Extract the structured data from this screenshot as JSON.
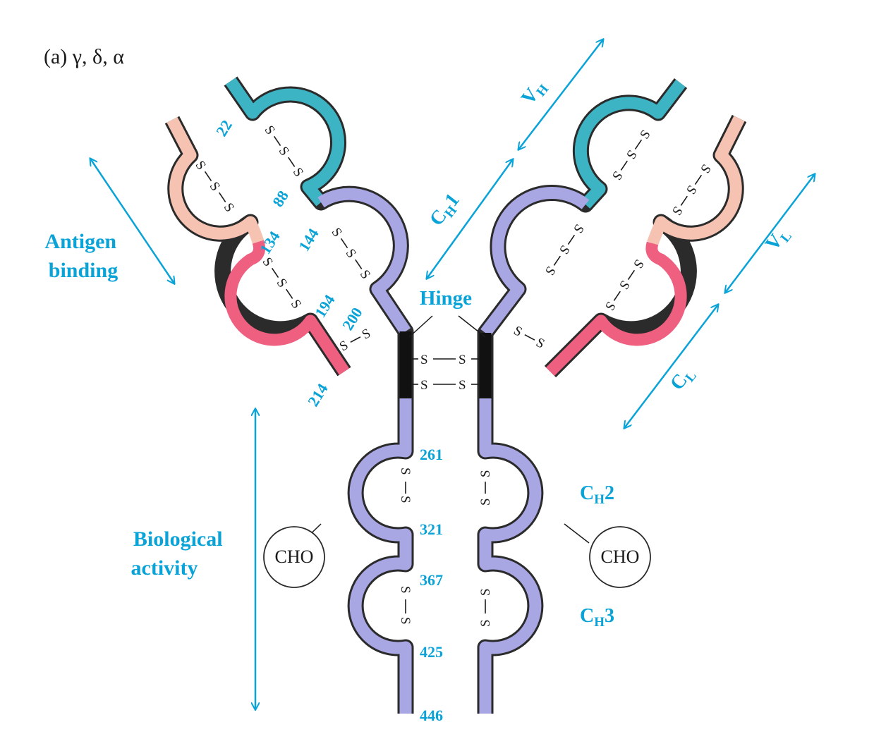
{
  "panel_label": "(a) γ, δ, α",
  "colors": {
    "vh": "#3db4c4",
    "ch": "#a9a6e4",
    "vl": "#f6c3b2",
    "cl": "#ef5f80",
    "hinge": "#111111",
    "label": "#0aa3d8",
    "arrow": "#0aa3d8"
  },
  "regions": {
    "antigen_binding": [
      "Antigen",
      "binding"
    ],
    "biological_activity": [
      "Biological",
      "activity"
    ],
    "hinge": "Hinge"
  },
  "domains": {
    "vh": {
      "main": "V",
      "sub": "H"
    },
    "vl": {
      "main": "V",
      "sub": "L"
    },
    "ch1": {
      "main": "C",
      "sub": "H",
      "suffix": "1"
    },
    "cl": {
      "main": "C",
      "sub": "L"
    },
    "ch2": {
      "main": "C",
      "sub": "H",
      "suffix": "2"
    },
    "ch3": {
      "main": "C",
      "sub": "H",
      "suffix": "3"
    }
  },
  "carbohydrate": "CHO",
  "disulfide_symbol": "S",
  "residues": {
    "r22": "22",
    "r88": "88",
    "r134": "134",
    "r144": "144",
    "r194": "194",
    "r200": "200",
    "r214": "214",
    "r261": "261",
    "r321": "321",
    "r367": "367",
    "r425": "425",
    "r446": "446"
  }
}
